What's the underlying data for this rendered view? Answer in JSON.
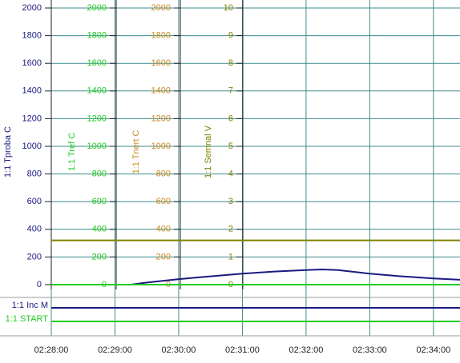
{
  "chart_data": {
    "type": "line",
    "xlim": [
      "02:28:00",
      "02:34:25"
    ],
    "xticks": [
      "02:28:00",
      "02:29:00",
      "02:30:00",
      "02:31:00",
      "02:32:00",
      "02:33:00",
      "02:34:00"
    ],
    "grid": true,
    "axes": [
      {
        "label": "1:1 Tproba C",
        "color": "#1a1a80",
        "ylim": [
          0,
          2000
        ],
        "yticks": [
          0,
          200,
          400,
          600,
          800,
          1000,
          1200,
          1400,
          1600,
          1800,
          2000
        ]
      },
      {
        "label": "1:1 Tref C",
        "color": "#22cc22",
        "ylim": [
          0,
          2000
        ],
        "yticks": [
          0,
          200,
          400,
          600,
          800,
          1000,
          1200,
          1400,
          1600,
          1800,
          2000
        ]
      },
      {
        "label": "1:1 Tnert C",
        "color": "#cc8a22",
        "ylim": [
          0,
          2000
        ],
        "yticks": [
          0,
          200,
          400,
          600,
          800,
          1000,
          1200,
          1400,
          1600,
          1800,
          2000
        ]
      },
      {
        "label": "1:1 Semnal V",
        "color": "#808000",
        "ylim": [
          0,
          10
        ],
        "yticks": [
          0,
          1,
          2,
          3,
          4,
          5,
          6,
          7,
          8,
          9,
          10
        ]
      }
    ],
    "series": [
      {
        "axis": 0,
        "color": "#1a1a80",
        "x": [
          "02:28:00",
          "02:29:15",
          "02:29:30",
          "02:30:00",
          "02:30:30",
          "02:31:00",
          "02:31:30",
          "02:32:00",
          "02:32:15",
          "02:32:30",
          "02:33:00",
          "02:33:30",
          "02:34:00",
          "02:34:25"
        ],
        "values": [
          0,
          0,
          15,
          40,
          60,
          80,
          95,
          105,
          110,
          105,
          80,
          60,
          45,
          35
        ]
      },
      {
        "axis": 1,
        "color": "#22cc22",
        "x": [
          "02:28:00",
          "02:34:25"
        ],
        "values": [
          0,
          0
        ]
      },
      {
        "axis": 3,
        "color": "#808000",
        "x": [
          "02:28:00",
          "02:34:25"
        ],
        "values": [
          1.6,
          1.6
        ]
      }
    ],
    "digital": [
      {
        "name": "1:1 Inc M",
        "color": "#1a1a80"
      },
      {
        "name": "1:1 START",
        "color": "#22cc22"
      }
    ]
  }
}
